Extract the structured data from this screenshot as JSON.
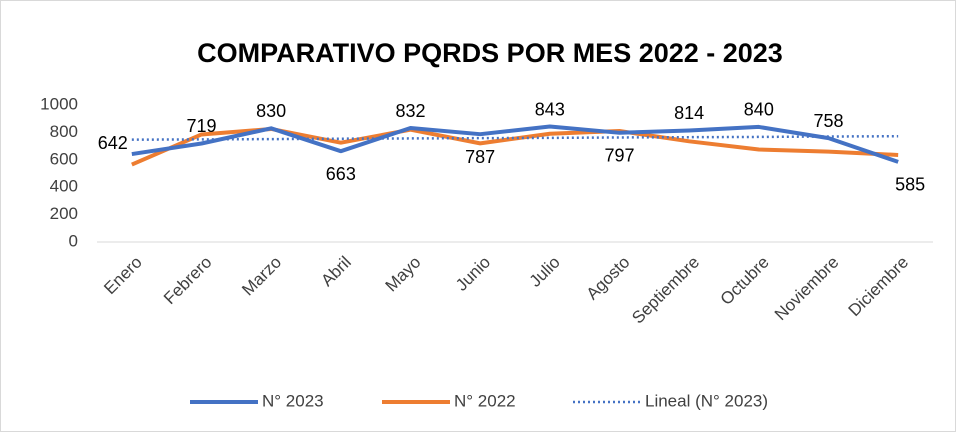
{
  "chart_data": {
    "type": "line",
    "title": "COMPARATIVO PQRDS  POR MES 2022 - 2023",
    "categories": [
      "Enero",
      "Febrero",
      "Marzo",
      "Abril",
      "Mayo",
      "Junio",
      "Julio",
      "Agosto",
      "Septiembre",
      "Octubre",
      "Noviembre",
      "Diciembre"
    ],
    "series": [
      {
        "name": "N° 2023",
        "color": "#4472c4",
        "values": [
          642,
          719,
          830,
          663,
          832,
          787,
          843,
          797,
          814,
          840,
          758,
          585
        ],
        "data_labels": true
      },
      {
        "name": "N° 2022",
        "color": "#ed7d31",
        "values": [
          565,
          785,
          825,
          725,
          820,
          720,
          790,
          810,
          735,
          675,
          660,
          635
        ]
      },
      {
        "name": "Lineal (N° 2023)",
        "color": "#4472c4",
        "dotted": true,
        "values": [
          747,
          749,
          751,
          754,
          756,
          758,
          760,
          763,
          765,
          767,
          770,
          772
        ]
      }
    ],
    "ylim": [
      0,
      1000
    ],
    "yticks": [
      0,
      200,
      400,
      600,
      800,
      1000
    ],
    "grid": false,
    "legend": "bottom"
  }
}
